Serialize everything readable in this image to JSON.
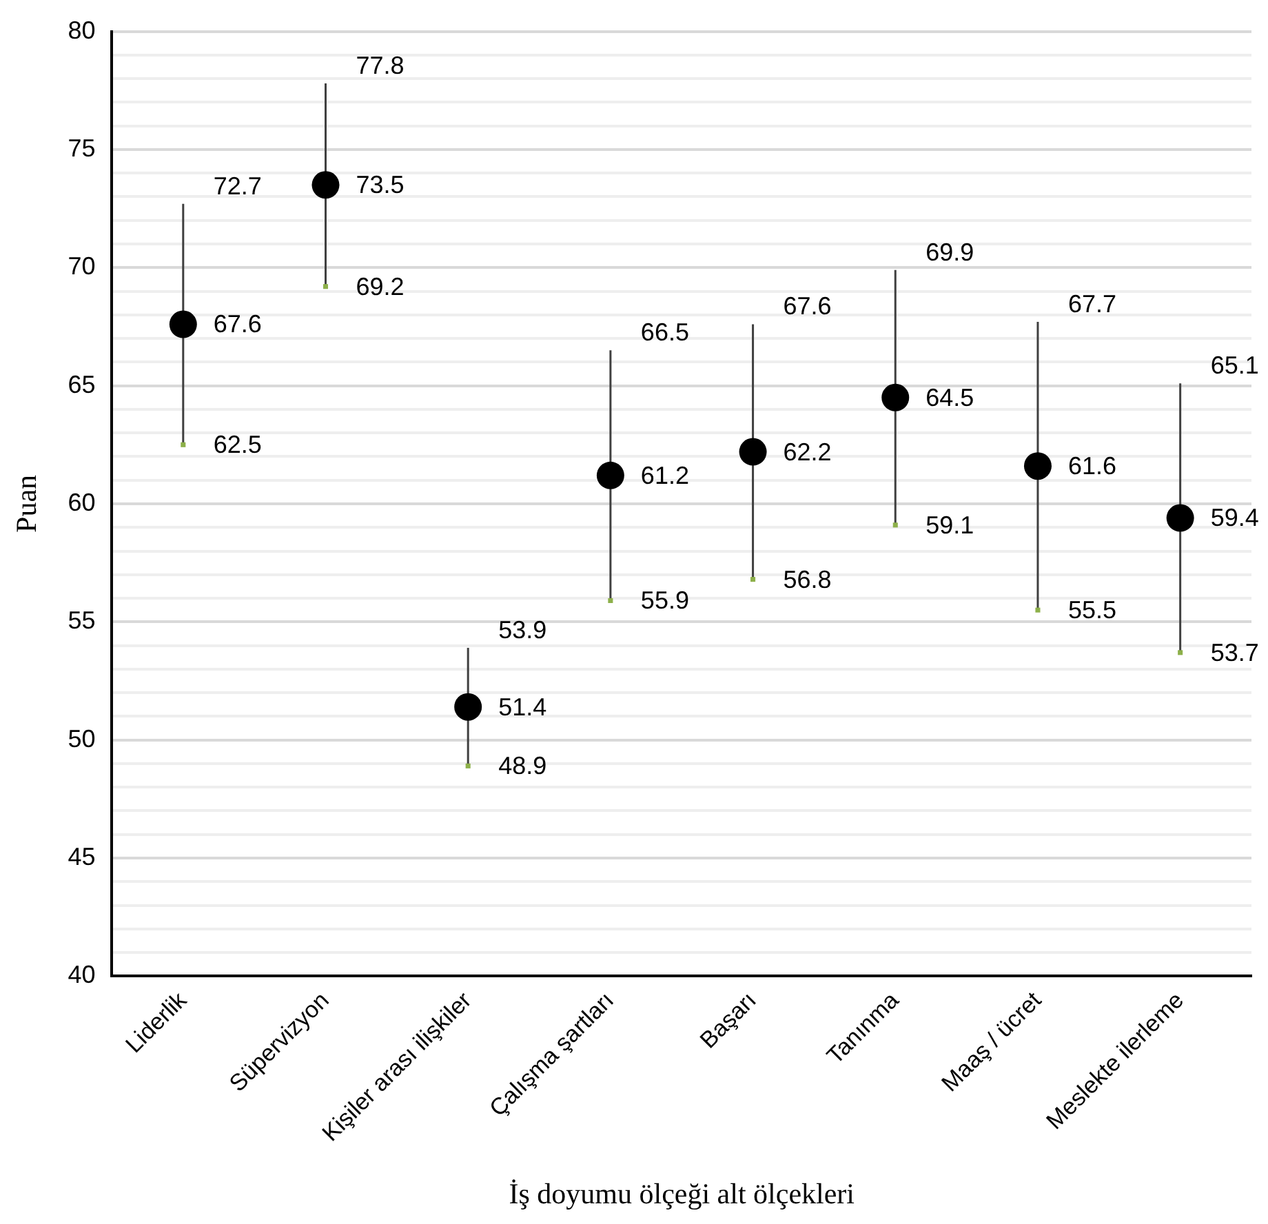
{
  "chart_data": {
    "type": "scatter",
    "xlabel": "İş doyumu ölçeği alt ölçekleri",
    "ylabel": "Puan",
    "categories": [
      "Liderlik",
      "Süpervizyon",
      "Kişiler arası ilişkiler",
      "Çalışma şartları",
      "Başarı",
      "Tanınma",
      "Maaş / ücret",
      "Meslekte ilerleme"
    ],
    "series": [
      {
        "values": [
          67.6,
          73.5,
          51.4,
          61.2,
          62.2,
          64.5,
          61.6,
          59.4
        ],
        "color": "#000000",
        "marker": "circle",
        "errors": [
          [
            62.5,
            72.7
          ],
          [
            69.2,
            77.8
          ],
          [
            48.9,
            53.9
          ],
          [
            55.9,
            66.5
          ],
          [
            56.8,
            67.6
          ],
          [
            59.1,
            69.9
          ],
          [
            55.5,
            67.7
          ],
          [
            53.7,
            65.1
          ]
        ]
      },
      {
        "values": [
          62.5,
          69.2,
          48.9,
          55.9,
          56.8,
          59.1,
          55.5,
          53.7
        ],
        "color": "#8db04a",
        "marker": "square"
      }
    ],
    "annotations": [
      {
        "text": "72.7",
        "x": "Liderlik",
        "y": 72.7
      },
      {
        "text": "77.8",
        "x": "Süpervizyon",
        "y": 77.8
      },
      {
        "text": "53.9",
        "x": "Kişiler arası ilişkiler",
        "y": 53.9
      },
      {
        "text": "66.5",
        "x": "Çalışma şartları",
        "y": 66.5
      },
      {
        "text": "67.6",
        "x": "Başarı",
        "y": 67.6
      },
      {
        "text": "69.9",
        "x": "Tanınma",
        "y": 69.9
      },
      {
        "text": "67.7",
        "x": "Maaş / ücret",
        "y": 67.7
      },
      {
        "text": "65.1",
        "x": "Meslekte ilerleme",
        "y": 65.1
      }
    ],
    "data_labels": true,
    "grid": "y",
    "legend": false,
    "ylim": [
      40,
      80
    ],
    "yticks": [
      40,
      {
        "value": 41,
        "label": null
      },
      {
        "value": 42,
        "label": null
      },
      {
        "value": 43,
        "label": null
      },
      {
        "value": 44,
        "label": null
      },
      45,
      {
        "value": 46,
        "label": null
      },
      {
        "value": 47,
        "label": null
      },
      {
        "value": 48,
        "label": null
      },
      {
        "value": 49,
        "label": null
      },
      50,
      {
        "value": 51,
        "label": null
      },
      {
        "value": 52,
        "label": null
      },
      {
        "value": 53,
        "label": null
      },
      {
        "value": 54,
        "label": null
      },
      55,
      {
        "value": 56,
        "label": null
      },
      {
        "value": 57,
        "label": null
      },
      {
        "value": 58,
        "label": null
      },
      {
        "value": 59,
        "label": null
      },
      60,
      {
        "value": 61,
        "label": null
      },
      {
        "value": 62,
        "label": null
      },
      {
        "value": 63,
        "label": null
      },
      {
        "value": 64,
        "label": null
      },
      65,
      {
        "value": 66,
        "label": null
      },
      {
        "value": 67,
        "label": null
      },
      {
        "value": 68,
        "label": null
      },
      {
        "value": 69,
        "label": null
      },
      70,
      {
        "value": 71,
        "label": null
      },
      {
        "value": 72,
        "label": null
      },
      {
        "value": 73,
        "label": null
      },
      {
        "value": 74,
        "label": null
      },
      75,
      {
        "value": 76,
        "label": null
      },
      {
        "value": 77,
        "label": null
      },
      {
        "value": 78,
        "label": null
      },
      {
        "value": 79,
        "label": null
      },
      80
    ]
  }
}
